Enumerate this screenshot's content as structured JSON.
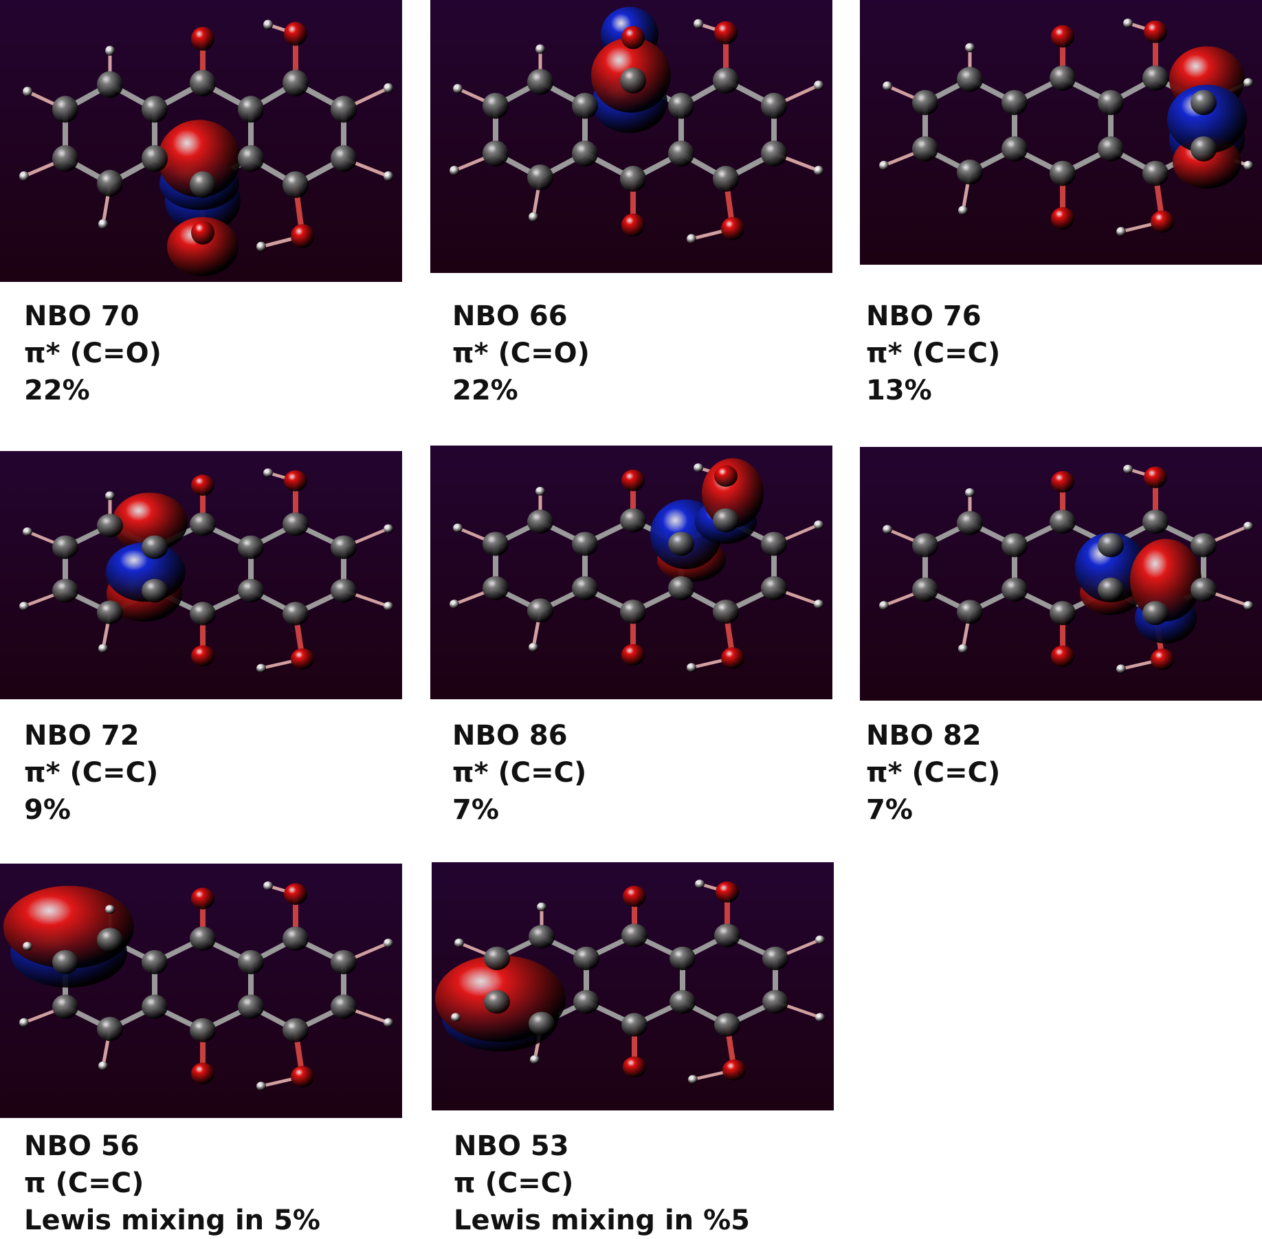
{
  "panels": [
    {
      "name": "NBO 70",
      "type": "π* (C=O)",
      "weight": "22%",
      "lobe": "carbonyl-mid-upper"
    },
    {
      "name": "NBO 66",
      "type": "π* (C=O)",
      "weight": "22%",
      "lobe": "carbonyl-top"
    },
    {
      "name": "NBO 76",
      "type": "π* (C=C)",
      "weight": "13%",
      "lobe": "right-ring-edge"
    },
    {
      "name": "NBO 72",
      "type": "π* (C=C)",
      "weight": "9%",
      "lobe": "left-ring-inner"
    },
    {
      "name": "NBO 86",
      "type": "π* (C=C)",
      "weight": "7%",
      "lobe": "right-upper"
    },
    {
      "name": "NBO 82",
      "type": "π* (C=C)",
      "weight": "7%",
      "lobe": "right-lower"
    },
    {
      "name": "NBO 56",
      "type": "π (C=C)",
      "weight": "Lewis mixing in 5%",
      "lobe": "left-outer-upper"
    },
    {
      "name": "NBO 53",
      "type": "π (C=C)",
      "weight": "Lewis mixing in %5",
      "lobe": "left-outer-lower"
    }
  ],
  "colors": {
    "background_top": "#230430",
    "background_bottom": "#1c0112",
    "carbon": "#808080",
    "oxygen": "#e01010",
    "hydrogen": "#f0f0f0",
    "positive_lobe": "#e01818",
    "negative_lobe": "#1428d0"
  }
}
